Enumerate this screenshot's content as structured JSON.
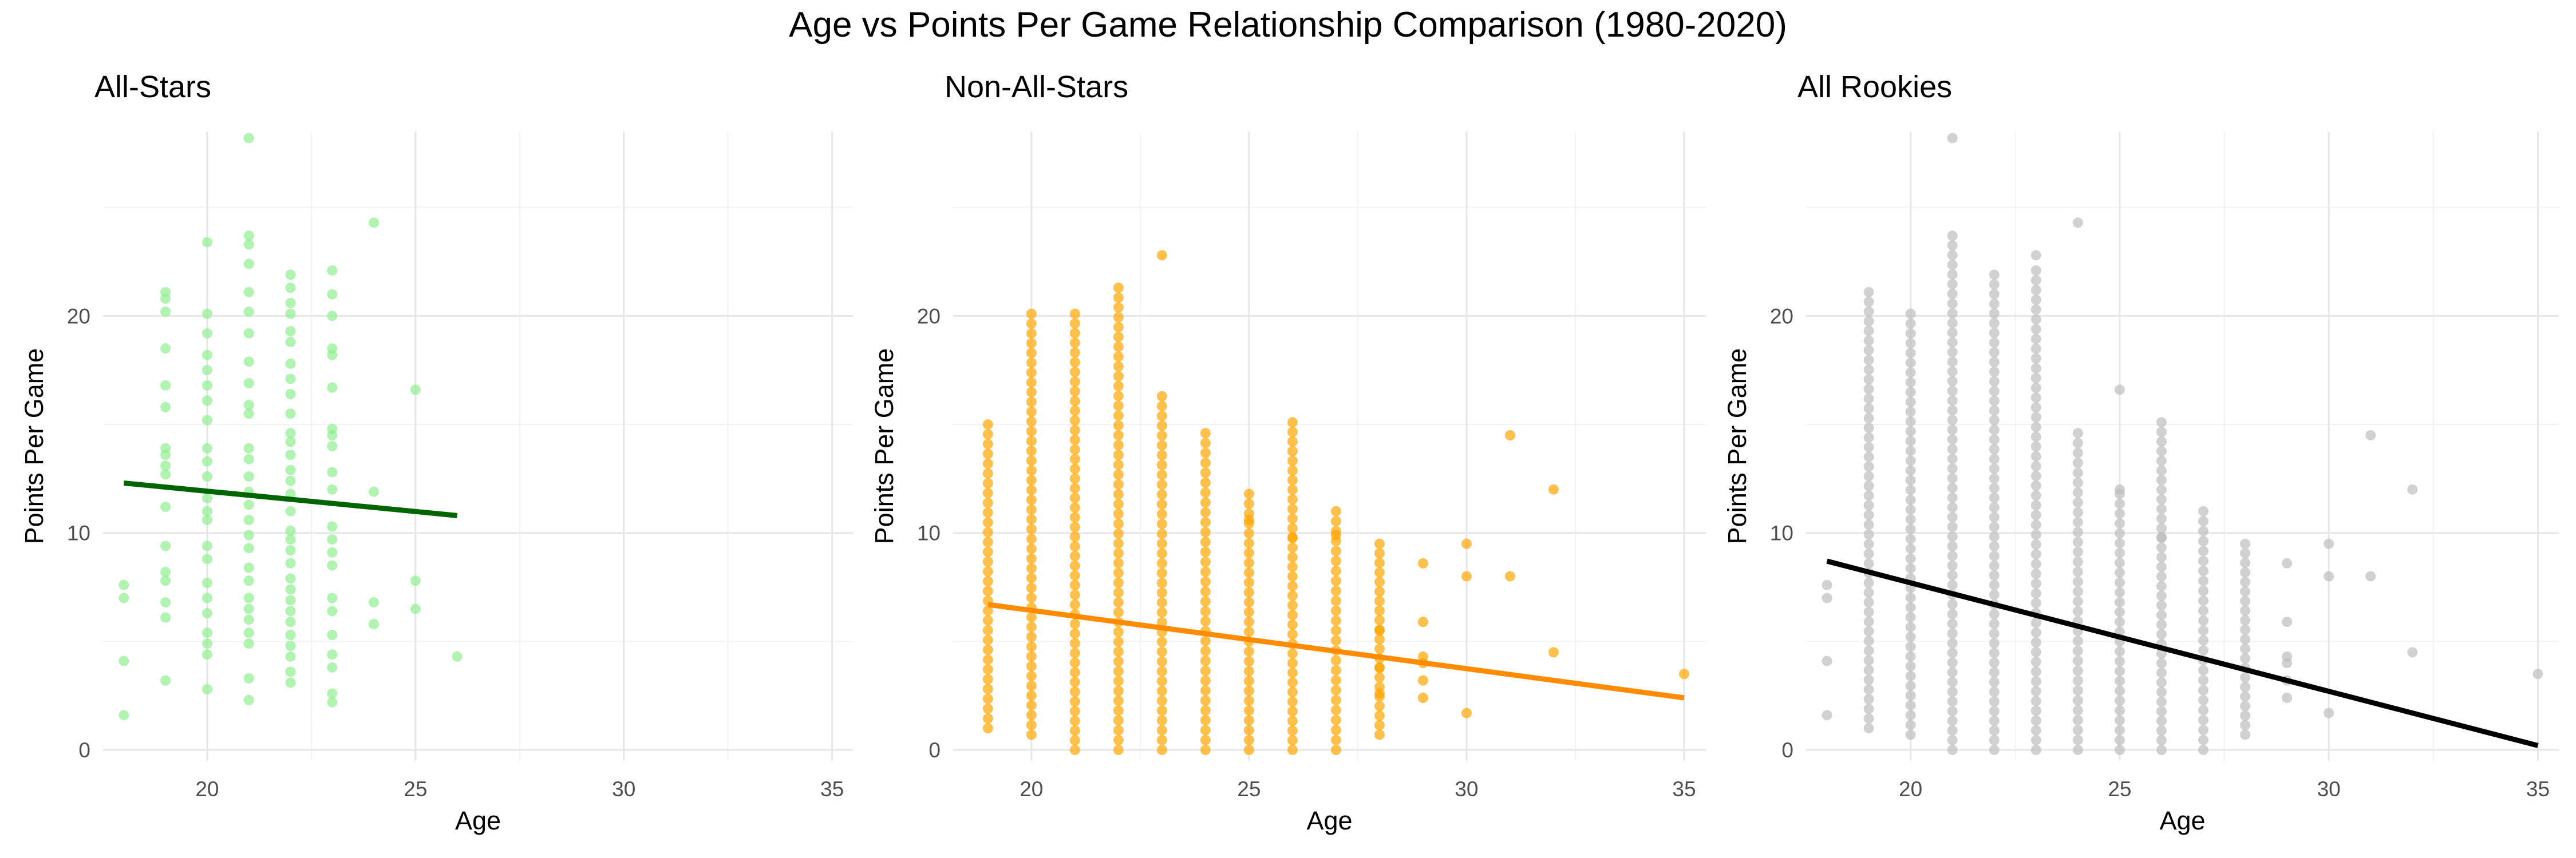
{
  "figure": {
    "title": "Age vs Points Per Game Relationship Comparison (1980-2020)"
  },
  "chart_data": [
    {
      "type": "scatter",
      "title": "All-Stars",
      "xlabel": "Age",
      "ylabel": "Points Per Game",
      "xlim": [
        17.5,
        35.5
      ],
      "ylim": [
        -0.5,
        28.5
      ],
      "xticks": [
        20,
        25,
        30,
        35
      ],
      "yticks": [
        0,
        10,
        20
      ],
      "grid": true,
      "point_color": "#90EE90",
      "trend_color": "#006400",
      "trend": {
        "x": [
          18,
          26
        ],
        "y": [
          12.3,
          10.8
        ]
      },
      "points": [
        [
          18,
          1.6
        ],
        [
          18,
          4.1
        ],
        [
          18,
          7.0
        ],
        [
          18,
          7.6
        ],
        [
          19,
          3.2
        ],
        [
          19,
          6.1
        ],
        [
          19,
          6.8
        ],
        [
          19,
          7.8
        ],
        [
          19,
          8.2
        ],
        [
          19,
          9.4
        ],
        [
          19,
          11.2
        ],
        [
          19,
          12.7
        ],
        [
          19,
          13.1
        ],
        [
          19,
          13.6
        ],
        [
          19,
          13.9
        ],
        [
          19,
          15.8
        ],
        [
          19,
          16.8
        ],
        [
          19,
          18.5
        ],
        [
          19,
          20.2
        ],
        [
          19,
          20.8
        ],
        [
          19,
          21.1
        ],
        [
          20,
          2.8
        ],
        [
          20,
          4.4
        ],
        [
          20,
          4.9
        ],
        [
          20,
          5.4
        ],
        [
          20,
          6.3
        ],
        [
          20,
          7.0
        ],
        [
          20,
          7.7
        ],
        [
          20,
          8.8
        ],
        [
          20,
          9.4
        ],
        [
          20,
          10.6
        ],
        [
          20,
          11.0
        ],
        [
          20,
          11.6
        ],
        [
          20,
          12.6
        ],
        [
          20,
          13.3
        ],
        [
          20,
          13.9
        ],
        [
          20,
          15.2
        ],
        [
          20,
          16.1
        ],
        [
          20,
          16.8
        ],
        [
          20,
          17.5
        ],
        [
          20,
          18.2
        ],
        [
          20,
          19.2
        ],
        [
          20,
          20.1
        ],
        [
          20,
          23.4
        ],
        [
          21,
          2.3
        ],
        [
          21,
          3.3
        ],
        [
          21,
          4.9
        ],
        [
          21,
          5.4
        ],
        [
          21,
          6.0
        ],
        [
          21,
          6.5
        ],
        [
          21,
          7.0
        ],
        [
          21,
          7.8
        ],
        [
          21,
          8.4
        ],
        [
          21,
          9.3
        ],
        [
          21,
          9.9
        ],
        [
          21,
          10.6
        ],
        [
          21,
          11.3
        ],
        [
          21,
          11.9
        ],
        [
          21,
          12.6
        ],
        [
          21,
          13.4
        ],
        [
          21,
          13.9
        ],
        [
          21,
          15.5
        ],
        [
          21,
          15.9
        ],
        [
          21,
          16.9
        ],
        [
          21,
          17.9
        ],
        [
          21,
          19.2
        ],
        [
          21,
          20.2
        ],
        [
          21,
          21.1
        ],
        [
          21,
          22.4
        ],
        [
          21,
          23.3
        ],
        [
          21,
          23.7
        ],
        [
          21,
          28.2
        ],
        [
          22,
          3.1
        ],
        [
          22,
          3.6
        ],
        [
          22,
          4.3
        ],
        [
          22,
          4.8
        ],
        [
          22,
          5.3
        ],
        [
          22,
          5.9
        ],
        [
          22,
          6.4
        ],
        [
          22,
          6.9
        ],
        [
          22,
          7.4
        ],
        [
          22,
          7.9
        ],
        [
          22,
          8.6
        ],
        [
          22,
          9.2
        ],
        [
          22,
          9.7
        ],
        [
          22,
          10.1
        ],
        [
          22,
          11.0
        ],
        [
          22,
          11.8
        ],
        [
          22,
          12.4
        ],
        [
          22,
          12.9
        ],
        [
          22,
          13.6
        ],
        [
          22,
          14.2
        ],
        [
          22,
          14.6
        ],
        [
          22,
          15.5
        ],
        [
          22,
          16.4
        ],
        [
          22,
          17.1
        ],
        [
          22,
          17.8
        ],
        [
          22,
          18.8
        ],
        [
          22,
          19.3
        ],
        [
          22,
          20.1
        ],
        [
          22,
          20.6
        ],
        [
          22,
          21.3
        ],
        [
          22,
          21.9
        ],
        [
          23,
          2.2
        ],
        [
          23,
          2.6
        ],
        [
          23,
          3.8
        ],
        [
          23,
          4.4
        ],
        [
          23,
          5.3
        ],
        [
          23,
          6.4
        ],
        [
          23,
          7.0
        ],
        [
          23,
          8.5
        ],
        [
          23,
          9.1
        ],
        [
          23,
          9.7
        ],
        [
          23,
          10.3
        ],
        [
          23,
          12.0
        ],
        [
          23,
          12.8
        ],
        [
          23,
          14.0
        ],
        [
          23,
          14.5
        ],
        [
          23,
          14.8
        ],
        [
          23,
          16.7
        ],
        [
          23,
          18.2
        ],
        [
          23,
          18.5
        ],
        [
          23,
          20.0
        ],
        [
          23,
          21.0
        ],
        [
          23,
          22.1
        ],
        [
          24,
          5.8
        ],
        [
          24,
          6.8
        ],
        [
          24,
          11.9
        ],
        [
          24,
          24.3
        ],
        [
          25,
          6.5
        ],
        [
          25,
          7.8
        ],
        [
          25,
          16.6
        ],
        [
          26,
          4.3
        ]
      ]
    },
    {
      "type": "scatter",
      "title": "Non-All-Stars",
      "xlabel": "Age",
      "ylabel": "Points Per Game",
      "xlim": [
        18.2,
        35.5
      ],
      "ylim": [
        -0.5,
        28.5
      ],
      "xticks": [
        20,
        25,
        30,
        35
      ],
      "yticks": [
        0,
        10,
        20
      ],
      "grid": true,
      "point_color": "#FFA500",
      "trend_color": "#FF8C00",
      "trend": {
        "x": [
          19,
          35
        ],
        "y": [
          6.7,
          2.4
        ]
      },
      "columns": [
        {
          "age": 19,
          "min": 1.0,
          "max": 15.0
        },
        {
          "age": 20,
          "min": 0.7,
          "max": 20.1
        },
        {
          "age": 21,
          "min": 0.0,
          "max": 20.1
        },
        {
          "age": 22,
          "min": 0.0,
          "max": 21.3
        },
        {
          "age": 23,
          "min": 0.0,
          "max": 16.3
        },
        {
          "age": 24,
          "min": 0.0,
          "max": 14.6
        },
        {
          "age": 25,
          "min": 0.0,
          "max": 11.8
        },
        {
          "age": 26,
          "min": 0.0,
          "max": 15.1
        },
        {
          "age": 27,
          "min": 0.0,
          "max": 11.0
        },
        {
          "age": 28,
          "min": 0.7,
          "max": 9.5
        }
      ],
      "points": [
        [
          23,
          22.8
        ],
        [
          25,
          10.6
        ],
        [
          26,
          9.8
        ],
        [
          27,
          9.9
        ],
        [
          28,
          5.5
        ],
        [
          28,
          3.8
        ],
        [
          28,
          2.6
        ],
        [
          29,
          2.4
        ],
        [
          29,
          3.2
        ],
        [
          29,
          4.0
        ],
        [
          29,
          4.3
        ],
        [
          29,
          5.9
        ],
        [
          29,
          8.6
        ],
        [
          30,
          1.7
        ],
        [
          30,
          8.0
        ],
        [
          30,
          9.5
        ],
        [
          31,
          8.0
        ],
        [
          31,
          14.5
        ],
        [
          32,
          4.5
        ],
        [
          32,
          12.0
        ],
        [
          35,
          3.5
        ]
      ]
    },
    {
      "type": "scatter",
      "title": "All Rookies",
      "xlabel": "Age",
      "ylabel": "Points Per Game",
      "xlim": [
        17.5,
        35.5
      ],
      "ylim": [
        -0.5,
        28.5
      ],
      "xticks": [
        20,
        25,
        30,
        35
      ],
      "yticks": [
        0,
        10,
        20
      ],
      "grid": true,
      "point_color": "#BEBEBE",
      "trend_color": "#000000",
      "trend": {
        "x": [
          18,
          35
        ],
        "y": [
          8.7,
          0.2
        ]
      },
      "columns": [
        {
          "age": 19,
          "min": 1.0,
          "max": 21.1
        },
        {
          "age": 20,
          "min": 0.7,
          "max": 20.1
        },
        {
          "age": 21,
          "min": 0.0,
          "max": 23.7
        },
        {
          "age": 22,
          "min": 0.0,
          "max": 21.9
        },
        {
          "age": 23,
          "min": 0.0,
          "max": 22.1
        },
        {
          "age": 24,
          "min": 0.0,
          "max": 14.6
        },
        {
          "age": 25,
          "min": 0.0,
          "max": 11.8
        },
        {
          "age": 26,
          "min": 0.0,
          "max": 15.1
        },
        {
          "age": 27,
          "min": 0.0,
          "max": 11.0
        },
        {
          "age": 28,
          "min": 0.7,
          "max": 9.5
        }
      ],
      "points": [
        [
          18,
          1.6
        ],
        [
          18,
          4.1
        ],
        [
          18,
          7.0
        ],
        [
          18,
          7.6
        ],
        [
          21,
          28.2
        ],
        [
          23,
          22.8
        ],
        [
          24,
          24.3
        ],
        [
          25,
          16.6
        ],
        [
          25,
          12.0
        ],
        [
          26,
          9.8
        ],
        [
          29,
          2.4
        ],
        [
          29,
          3.2
        ],
        [
          29,
          4.0
        ],
        [
          29,
          4.3
        ],
        [
          29,
          5.9
        ],
        [
          29,
          8.6
        ],
        [
          30,
          1.7
        ],
        [
          30,
          8.0
        ],
        [
          30,
          9.5
        ],
        [
          31,
          8.0
        ],
        [
          31,
          14.5
        ],
        [
          32,
          4.5
        ],
        [
          32,
          12.0
        ],
        [
          35,
          3.5
        ]
      ]
    }
  ]
}
